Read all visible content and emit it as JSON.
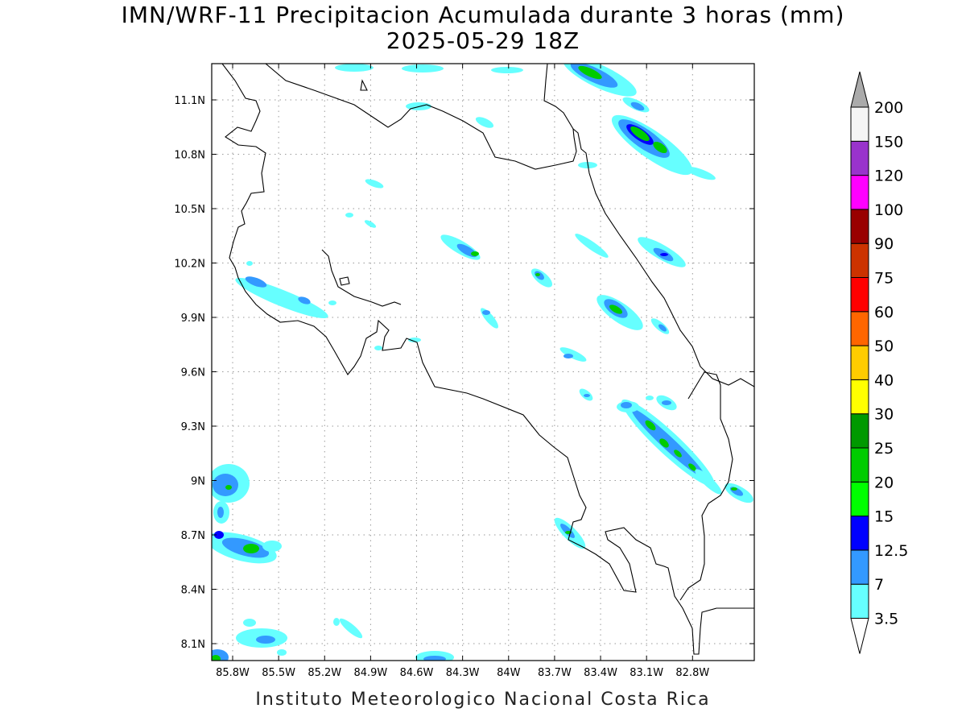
{
  "title": "IMN/WRF-11 Precipitacion Acumulada durante 3 horas (mm)",
  "subtitle": "2025-05-29 18Z",
  "footer": "Instituto Meteorologico Nacional Costa Rica",
  "map": {
    "lon_range": [
      -86.05,
      -82.55
    ],
    "lat_range": [
      8.0,
      11.3
    ],
    "lon_ticks": [
      "85.8W",
      "85.5W",
      "85.2W",
      "84.9W",
      "84.6W",
      "84.3W",
      "84W",
      "83.7W",
      "83.4W",
      "83.1W",
      "82.8W"
    ],
    "lat_ticks": [
      "11.1N",
      "10.8N",
      "10.5N",
      "10.2N",
      "9.9N",
      "9.6N",
      "9.3N",
      "9N",
      "8.7N",
      "8.4N",
      "8.1N"
    ],
    "grid": "dotted"
  },
  "colorbar": {
    "labels": [
      "3.5",
      "7",
      "12.5",
      "15",
      "20",
      "25",
      "30",
      "40",
      "50",
      "60",
      "75",
      "90",
      "100",
      "120",
      "150",
      "200"
    ],
    "colors": [
      "#66ffff",
      "#3399ff",
      "#0000ff",
      "#00ff00",
      "#00cc00",
      "#009900",
      "#ffff00",
      "#ffcc00",
      "#ff6600",
      "#ff0000",
      "#cc3300",
      "#990000",
      "#ff00ff",
      "#9933cc",
      "#f5f5f5",
      "#aaaaaa"
    ]
  },
  "colors": {
    "light_cyan": "#66ffff",
    "blue": "#3399ff",
    "dark_blue": "#0000ff",
    "green": "#00cc00",
    "coast": "#000000"
  }
}
